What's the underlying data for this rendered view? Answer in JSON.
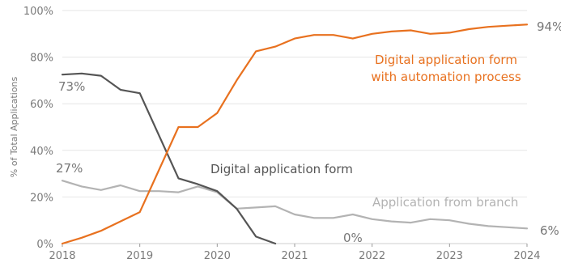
{
  "chart_data": {
    "type": "line",
    "ylabel": "% of Total Applications",
    "xlim": [
      2018,
      2024
    ],
    "ylim": [
      0,
      100
    ],
    "x_ticks": [
      2018,
      2019,
      2020,
      2021,
      2022,
      2023,
      2024
    ],
    "y_ticks": [
      0,
      20,
      40,
      60,
      80,
      100
    ],
    "y_tick_labels": [
      "0%",
      "20%",
      "40%",
      "60%",
      "80%",
      "100%"
    ],
    "grid": true,
    "series": [
      {
        "name": "Digital application form with automation process",
        "color": "#e8711f",
        "x": [
          2018.0,
          2018.25,
          2018.5,
          2018.75,
          2019.0,
          2019.5,
          2019.75,
          2020.0,
          2020.25,
          2020.5,
          2020.75,
          2021.0,
          2021.25,
          2021.5,
          2021.75,
          2022.0,
          2022.25,
          2022.5,
          2022.75,
          2023.0,
          2023.25,
          2023.5,
          2023.75,
          2024.0
        ],
        "y": [
          0,
          2.5,
          5.5,
          9.5,
          13.5,
          50,
          50,
          56,
          70,
          82.5,
          84.5,
          88,
          89.5,
          89.5,
          88,
          90,
          91,
          91.5,
          90,
          90.5,
          92,
          93,
          93.5,
          94
        ]
      },
      {
        "name": "Digital application form",
        "color": "#555555",
        "x": [
          2018.0,
          2018.25,
          2018.5,
          2018.75,
          2019.0,
          2019.5,
          2019.75,
          2020.0,
          2020.25,
          2020.5,
          2020.75
        ],
        "y": [
          72.5,
          73,
          72,
          66,
          64.5,
          28,
          25.5,
          22.5,
          15,
          3,
          0
        ]
      },
      {
        "name": "Application from branch",
        "color": "#b3b3b3",
        "x": [
          2018.0,
          2018.25,
          2018.5,
          2018.75,
          2019.0,
          2019.25,
          2019.5,
          2019.75,
          2020.0,
          2020.25,
          2020.5,
          2020.75,
          2021.0,
          2021.25,
          2021.5,
          2021.75,
          2022.0,
          2022.25,
          2022.5,
          2022.75,
          2023.0,
          2023.25,
          2023.5,
          2023.75,
          2024.0
        ],
        "y": [
          27,
          24.5,
          23,
          25,
          22.5,
          22.5,
          22,
          24.5,
          22,
          15,
          15.5,
          16,
          12.5,
          11,
          11,
          12.5,
          10.5,
          9.5,
          9,
          10.5,
          10,
          8.5,
          7.5,
          7,
          6.5
        ]
      }
    ],
    "annotations": [
      {
        "text": "Digital application form",
        "series": 1,
        "color": "#555555"
      },
      {
        "text": "Application from branch",
        "series": 2,
        "color": "#b3b3b3"
      },
      {
        "text": "Digital application form",
        "series": 0,
        "color": "#e8711f"
      },
      {
        "text": "with automation process",
        "series": 0,
        "color": "#e8711f"
      }
    ],
    "end_labels": [
      {
        "text": "94%",
        "color": "#777777"
      },
      {
        "text": "73%",
        "color": "#777777"
      },
      {
        "text": "27%",
        "color": "#777777"
      },
      {
        "text": "6%",
        "color": "#777777"
      },
      {
        "text": "0%",
        "color": "#777777"
      }
    ]
  }
}
